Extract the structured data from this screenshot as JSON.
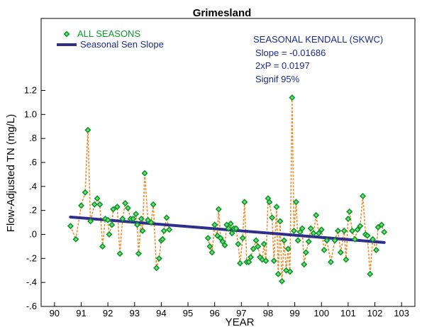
{
  "colors": {
    "series_point_stroke": "#0a9a2a",
    "series_point_fill": "#7ed67e",
    "series_line": "#f08c2a",
    "trend_line": "#2e2e8c",
    "stats_text": "#1c2a8c",
    "legend_all_seasons_text": "#0a9a2a",
    "legend_sen_text": "#1c2a8c"
  },
  "chart_data": {
    "type": "scatter",
    "title": "Grimesland",
    "xlabel": "YEAR",
    "ylabel": "Flow-Adjusted TN (mg/L)",
    "xlim": [
      89.5,
      103.5
    ],
    "ylim": [
      -0.6,
      1.8
    ],
    "x_ticks": [
      90,
      91,
      92,
      93,
      94,
      95,
      96,
      97,
      98,
      99,
      100,
      101,
      102,
      103
    ],
    "x_tick_labels": [
      "90",
      "91",
      "92",
      "93",
      "94",
      "95",
      "96",
      "97",
      "98",
      "99",
      "100",
      "101",
      "102",
      "103"
    ],
    "y_ticks": [
      -0.6,
      -0.4,
      -0.2,
      0.0,
      0.2,
      0.4,
      0.6,
      0.8,
      1.0,
      1.2
    ],
    "y_tick_labels": [
      "-.6",
      "-.4",
      "-.2",
      ".0",
      ".2",
      ".4",
      ".6",
      ".8",
      "1.0",
      "1.2"
    ],
    "grid": false,
    "legend": {
      "placement": "top-left",
      "entries": [
        {
          "label": "ALL SEASONS",
          "type": "marker"
        },
        {
          "label": "Seasonal Sen Slope",
          "type": "line"
        }
      ]
    },
    "annotations": [
      "SEASONAL KENDALL (SKWC)",
      "Slope = -0.01686",
      "2xP = 0.0197",
      "Signif 95%"
    ],
    "series": [
      {
        "name": "ALL SEASONS",
        "kind": "points-with-dashed-line",
        "segments": [
          [
            [
              90.6,
              0.07
            ],
            [
              90.8,
              -0.04
            ],
            [
              91.0,
              0.24
            ],
            [
              91.15,
              0.35
            ],
            [
              91.25,
              0.87
            ],
            [
              91.35,
              0.11
            ],
            [
              91.5,
              0.25
            ],
            [
              91.6,
              0.3
            ],
            [
              91.7,
              0.25
            ],
            [
              91.8,
              -0.1
            ],
            [
              91.9,
              0.13
            ],
            [
              92.0,
              0.12
            ],
            [
              92.05,
              0.0
            ],
            [
              92.15,
              0.08
            ],
            [
              92.2,
              0.21
            ],
            [
              92.35,
              0.23
            ],
            [
              92.45,
              -0.16
            ],
            [
              92.55,
              0.13
            ],
            [
              92.65,
              0.26
            ],
            [
              92.75,
              0.22
            ],
            [
              92.85,
              0.13
            ],
            [
              92.95,
              0.13
            ],
            [
              93.05,
              0.17
            ],
            [
              93.1,
              0.08
            ],
            [
              93.15,
              -0.16
            ],
            [
              93.25,
              0.13
            ],
            [
              93.3,
              0.03
            ],
            [
              93.38,
              0.51
            ],
            [
              93.5,
              0.12
            ],
            [
              93.62,
              0.1
            ],
            [
              93.7,
              0.25
            ],
            [
              93.82,
              -0.28
            ],
            [
              93.92,
              -0.2
            ],
            [
              94.0,
              -0.05
            ],
            [
              94.05,
              -0.04
            ],
            [
              94.1,
              0.03
            ],
            [
              94.2,
              0.14
            ],
            [
              94.3,
              0.04
            ]
          ],
          [
            [
              95.75,
              -0.03
            ],
            [
              95.82,
              -0.1
            ],
            [
              95.9,
              -0.15
            ],
            [
              96.0,
              0.08
            ],
            [
              96.1,
              -0.01
            ],
            [
              96.15,
              0.21
            ],
            [
              96.22,
              -0.03
            ],
            [
              96.3,
              -0.06
            ],
            [
              96.38,
              -0.09
            ],
            [
              96.45,
              0.08
            ],
            [
              96.52,
              0.05
            ],
            [
              96.6,
              0.09
            ],
            [
              96.65,
              0.01
            ],
            [
              96.72,
              0.05
            ],
            [
              96.8,
              0.05
            ],
            [
              96.88,
              -0.08
            ],
            [
              96.95,
              -0.24
            ],
            [
              97.05,
              -0.03
            ],
            [
              97.12,
              0.27
            ],
            [
              97.2,
              -0.23
            ],
            [
              97.28,
              -0.23
            ],
            [
              97.35,
              -0.19
            ],
            [
              97.45,
              -0.12
            ],
            [
              97.55,
              -0.05
            ],
            [
              97.62,
              -0.1
            ],
            [
              97.7,
              -0.19
            ],
            [
              97.78,
              -0.21
            ],
            [
              97.85,
              -0.08
            ],
            [
              97.92,
              -0.22
            ],
            [
              98.0,
              0.3
            ],
            [
              98.05,
              0.27
            ],
            [
              98.15,
              0.14
            ],
            [
              98.22,
              -0.22
            ],
            [
              98.32,
              0.23
            ],
            [
              98.38,
              -0.33
            ],
            [
              98.45,
              0.11
            ],
            [
              98.52,
              -0.39
            ],
            [
              98.6,
              -0.05
            ],
            [
              98.68,
              -0.3
            ],
            [
              98.75,
              -0.12
            ],
            [
              98.82,
              -0.31
            ],
            [
              98.9,
              1.14
            ],
            [
              98.97,
              0.03
            ],
            [
              99.05,
              0.27
            ],
            [
              99.12,
              -0.05
            ],
            [
              99.2,
              0.02
            ],
            [
              99.28,
              0.05
            ],
            [
              99.35,
              -0.25
            ],
            [
              99.42,
              -0.15
            ],
            [
              99.52,
              -0.06
            ],
            [
              99.6,
              0.05
            ],
            [
              99.7,
              0.01
            ],
            [
              99.8,
              0.16
            ],
            [
              99.9,
              0.01
            ],
            [
              100.0,
              0.04
            ],
            [
              100.1,
              -0.13
            ],
            [
              100.2,
              -0.05
            ],
            [
              100.35,
              -0.23
            ],
            [
              100.5,
              -0.05
            ],
            [
              100.62,
              0.03
            ],
            [
              100.72,
              -0.15
            ],
            [
              100.85,
              0.03
            ],
            [
              100.92,
              -0.21
            ],
            [
              101.0,
              0.13
            ],
            [
              101.05,
              0.19
            ],
            [
              101.15,
              0.03
            ],
            [
              101.25,
              -0.04
            ],
            [
              101.35,
              0.04
            ],
            [
              101.45,
              0.07
            ],
            [
              101.55,
              0.32
            ],
            [
              101.65,
              0.0
            ],
            [
              101.72,
              -0.01
            ],
            [
              101.82,
              -0.33
            ],
            [
              101.92,
              -0.04
            ],
            [
              102.05,
              -0.13
            ],
            [
              102.12,
              0.06
            ],
            [
              102.25,
              0.08
            ],
            [
              102.35,
              0.02
            ]
          ]
        ]
      },
      {
        "name": "Seasonal Sen Slope",
        "kind": "trend-line",
        "points": [
          [
            90.6,
            0.145
          ],
          [
            102.35,
            -0.067
          ]
        ]
      }
    ]
  }
}
